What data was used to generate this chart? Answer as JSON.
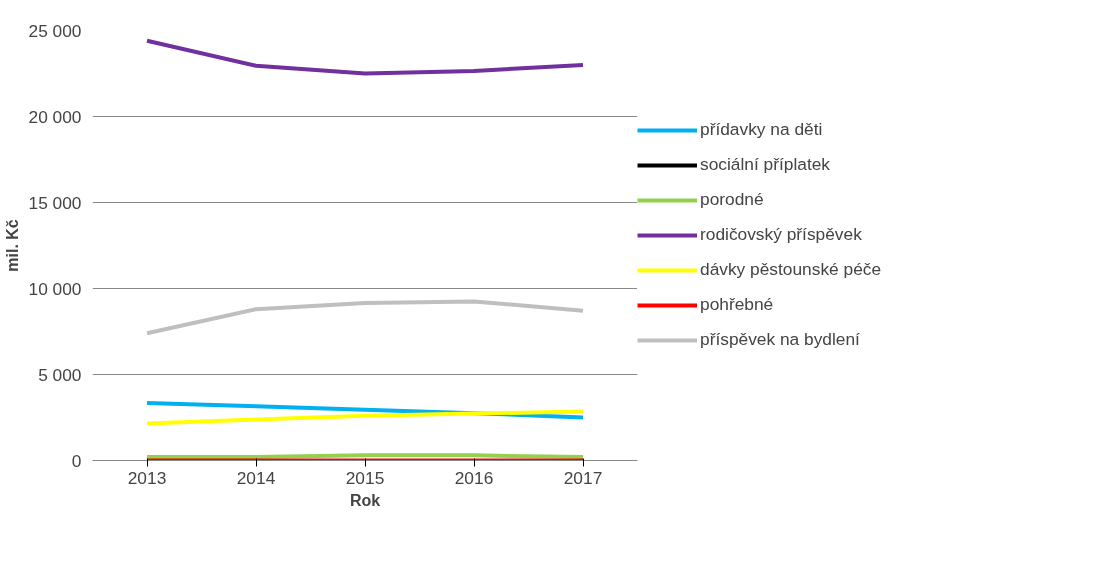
{
  "chart_data": {
    "type": "line",
    "xlabel": "Rok",
    "ylabel": "mil. Kč",
    "categories": [
      "2013",
      "2014",
      "2015",
      "2016",
      "2017"
    ],
    "ylim": [
      0,
      25000
    ],
    "yticks": [
      {
        "value": 0,
        "label": "0"
      },
      {
        "value": 5000,
        "label": "5 000"
      },
      {
        "value": 10000,
        "label": "10 000"
      },
      {
        "value": 15000,
        "label": "15 000"
      },
      {
        "value": 20000,
        "label": "20 000"
      },
      {
        "value": 25000,
        "label": "25 000"
      }
    ],
    "grid": "y",
    "legend": "right",
    "series": [
      {
        "name": "přídavky na děti",
        "color": "#00b0f0",
        "values": [
          3350,
          3150,
          2950,
          2750,
          2500
        ]
      },
      {
        "name": "sociální příplatek",
        "color": "#000000",
        "values": [
          null,
          null,
          null,
          null,
          null
        ]
      },
      {
        "name": "porodné",
        "color": "#92d050",
        "values": [
          200,
          200,
          300,
          300,
          200
        ]
      },
      {
        "name": "rodičovský příspěvek",
        "color": "#7030a0",
        "values": [
          24400,
          22950,
          22500,
          22650,
          23000
        ]
      },
      {
        "name": "dávky pěstounské péče",
        "color": "#ffff00",
        "values": [
          2150,
          2380,
          2600,
          2730,
          2850
        ]
      },
      {
        "name": "pohřebné",
        "color": "#ff0000",
        "values": [
          0,
          0,
          0,
          0,
          0
        ]
      },
      {
        "name": "příspěvek na bydlení",
        "color": "#bfbfbf",
        "values": [
          7400,
          8800,
          9150,
          9250,
          8700
        ]
      }
    ]
  }
}
